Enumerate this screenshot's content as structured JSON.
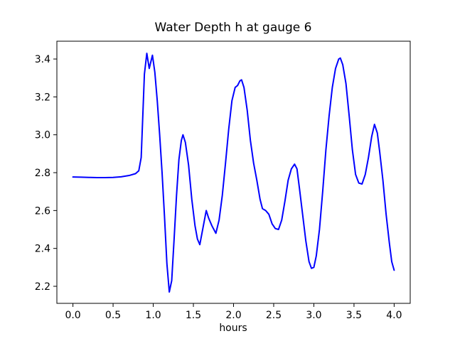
{
  "figure": {
    "background": "#ffffff",
    "frame_color": "#000000",
    "text_color": "#000000"
  },
  "chart_data": {
    "type": "line",
    "title": "Water Depth h at gauge 6",
    "xlabel": "hours",
    "ylabel": "",
    "grid": false,
    "legend": null,
    "xlim": [
      -0.2,
      4.2
    ],
    "ylim": [
      2.11,
      3.494
    ],
    "x_ticks": [
      0.0,
      0.5,
      1.0,
      1.5,
      2.0,
      2.5,
      3.0,
      3.5,
      4.0
    ],
    "y_ticks": [
      2.2,
      2.4,
      2.6,
      2.8,
      3.0,
      3.2,
      3.4
    ],
    "tick_decimals": 1,
    "series": [
      {
        "name": "water-depth-h",
        "color": "#0000ff",
        "line_width": 2,
        "points": [
          [
            0.0,
            2.777
          ],
          [
            0.1,
            2.776
          ],
          [
            0.2,
            2.775
          ],
          [
            0.3,
            2.774
          ],
          [
            0.4,
            2.774
          ],
          [
            0.5,
            2.775
          ],
          [
            0.6,
            2.778
          ],
          [
            0.7,
            2.785
          ],
          [
            0.78,
            2.795
          ],
          [
            0.82,
            2.81
          ],
          [
            0.85,
            2.88
          ],
          [
            0.87,
            3.1
          ],
          [
            0.89,
            3.32
          ],
          [
            0.92,
            3.43
          ],
          [
            0.95,
            3.35
          ],
          [
            0.99,
            3.42
          ],
          [
            1.02,
            3.33
          ],
          [
            1.05,
            3.18
          ],
          [
            1.08,
            3.0
          ],
          [
            1.11,
            2.8
          ],
          [
            1.14,
            2.57
          ],
          [
            1.17,
            2.32
          ],
          [
            1.2,
            2.17
          ],
          [
            1.23,
            2.23
          ],
          [
            1.26,
            2.45
          ],
          [
            1.29,
            2.68
          ],
          [
            1.32,
            2.87
          ],
          [
            1.35,
            2.97
          ],
          [
            1.37,
            3.0
          ],
          [
            1.4,
            2.96
          ],
          [
            1.44,
            2.84
          ],
          [
            1.48,
            2.66
          ],
          [
            1.52,
            2.52
          ],
          [
            1.55,
            2.45
          ],
          [
            1.58,
            2.42
          ],
          [
            1.62,
            2.51
          ],
          [
            1.66,
            2.6
          ],
          [
            1.69,
            2.56
          ],
          [
            1.73,
            2.52
          ],
          [
            1.78,
            2.48
          ],
          [
            1.82,
            2.55
          ],
          [
            1.86,
            2.68
          ],
          [
            1.9,
            2.85
          ],
          [
            1.94,
            3.03
          ],
          [
            1.98,
            3.18
          ],
          [
            2.02,
            3.25
          ],
          [
            2.05,
            3.26
          ],
          [
            2.08,
            3.285
          ],
          [
            2.1,
            3.29
          ],
          [
            2.13,
            3.25
          ],
          [
            2.17,
            3.13
          ],
          [
            2.21,
            2.97
          ],
          [
            2.25,
            2.85
          ],
          [
            2.29,
            2.76
          ],
          [
            2.33,
            2.66
          ],
          [
            2.36,
            2.61
          ],
          [
            2.4,
            2.6
          ],
          [
            2.44,
            2.58
          ],
          [
            2.48,
            2.53
          ],
          [
            2.52,
            2.505
          ],
          [
            2.56,
            2.5
          ],
          [
            2.6,
            2.55
          ],
          [
            2.64,
            2.65
          ],
          [
            2.68,
            2.76
          ],
          [
            2.72,
            2.82
          ],
          [
            2.76,
            2.845
          ],
          [
            2.79,
            2.82
          ],
          [
            2.82,
            2.72
          ],
          [
            2.86,
            2.58
          ],
          [
            2.9,
            2.44
          ],
          [
            2.94,
            2.33
          ],
          [
            2.97,
            2.295
          ],
          [
            3.0,
            2.3
          ],
          [
            3.03,
            2.36
          ],
          [
            3.07,
            2.5
          ],
          [
            3.11,
            2.7
          ],
          [
            3.15,
            2.92
          ],
          [
            3.19,
            3.1
          ],
          [
            3.23,
            3.25
          ],
          [
            3.27,
            3.35
          ],
          [
            3.31,
            3.4
          ],
          [
            3.33,
            3.405
          ],
          [
            3.36,
            3.37
          ],
          [
            3.4,
            3.27
          ],
          [
            3.44,
            3.1
          ],
          [
            3.48,
            2.92
          ],
          [
            3.52,
            2.79
          ],
          [
            3.56,
            2.745
          ],
          [
            3.6,
            2.74
          ],
          [
            3.64,
            2.79
          ],
          [
            3.68,
            2.88
          ],
          [
            3.72,
            2.99
          ],
          [
            3.755,
            3.055
          ],
          [
            3.79,
            3.01
          ],
          [
            3.82,
            2.91
          ],
          [
            3.86,
            2.76
          ],
          [
            3.9,
            2.58
          ],
          [
            3.94,
            2.43
          ],
          [
            3.97,
            2.33
          ],
          [
            4.0,
            2.285
          ]
        ]
      }
    ]
  }
}
